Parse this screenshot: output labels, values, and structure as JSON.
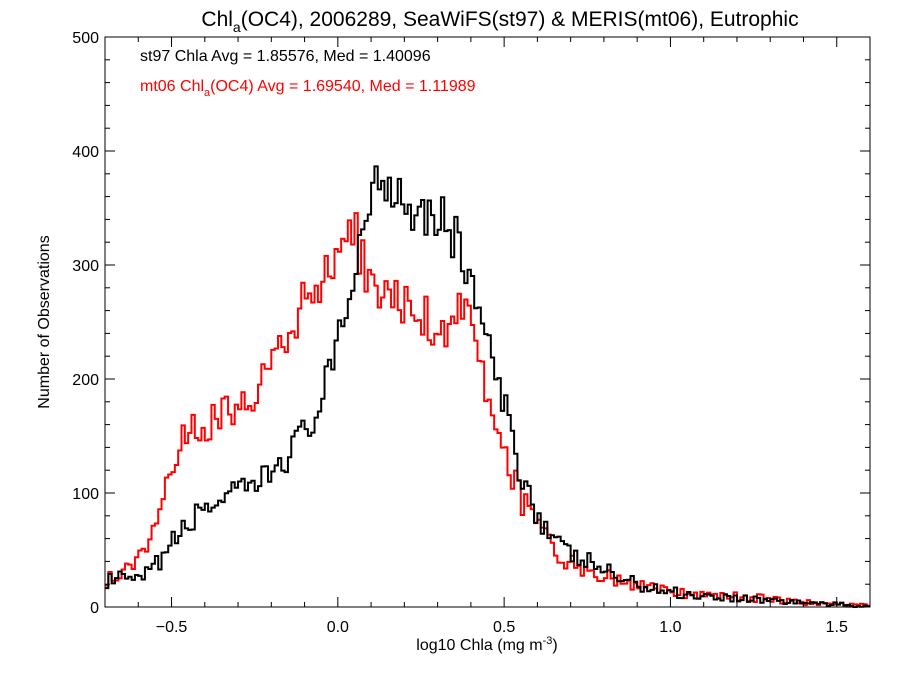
{
  "chart_data": {
    "type": "line",
    "title": {
      "main": "Chl",
      "sub": "a",
      "rest": "(OC4), 2006289, SeaWiFS(st97) & MERIS(mt06), Eutrophic"
    },
    "xlabel": {
      "main": "log10 Chla (mg m",
      "sup": "-3",
      "close": ")"
    },
    "ylabel": "Number of Observations",
    "xlim": [
      -0.7,
      1.6
    ],
    "ylim": [
      0,
      500
    ],
    "x_ticks": [
      {
        "value": -0.5,
        "label": "−0.5"
      },
      {
        "value": 0.0,
        "label": "0.0"
      },
      {
        "value": 0.5,
        "label": "0.5"
      },
      {
        "value": 1.0,
        "label": "1.0"
      },
      {
        "value": 1.5,
        "label": "1.5"
      }
    ],
    "y_ticks": [
      {
        "value": 0,
        "label": "0"
      },
      {
        "value": 100,
        "label": "100"
      },
      {
        "value": 200,
        "label": "200"
      },
      {
        "value": 300,
        "label": "300"
      },
      {
        "value": 400,
        "label": "400"
      },
      {
        "value": 500,
        "label": "500"
      }
    ],
    "grid": false,
    "legend": [
      {
        "parts": [
          "st97 Chla Avg = 1.85576, Med = 1.40096"
        ],
        "color": "#000000"
      },
      {
        "parts": [
          "mt06 Chl",
          "a",
          "(OC4) Avg = 1.69540, Med = 1.11989"
        ],
        "color": "#ff0000"
      }
    ],
    "bin_width": 0.01,
    "series": [
      {
        "id": "st97",
        "color": "#000000",
        "anchors": [
          [
            -0.7,
            22
          ],
          [
            -0.65,
            25
          ],
          [
            -0.6,
            22
          ],
          [
            -0.55,
            35
          ],
          [
            -0.5,
            55
          ],
          [
            -0.45,
            72
          ],
          [
            -0.4,
            88
          ],
          [
            -0.35,
            95
          ],
          [
            -0.3,
            98
          ],
          [
            -0.25,
            105
          ],
          [
            -0.2,
            118
          ],
          [
            -0.15,
            135
          ],
          [
            -0.1,
            152
          ],
          [
            -0.05,
            180
          ],
          [
            0.0,
            225
          ],
          [
            0.03,
            265
          ],
          [
            0.05,
            300
          ],
          [
            0.08,
            340
          ],
          [
            0.1,
            365
          ],
          [
            0.13,
            378
          ],
          [
            0.16,
            375
          ],
          [
            0.2,
            360
          ],
          [
            0.25,
            350
          ],
          [
            0.3,
            345
          ],
          [
            0.33,
            335
          ],
          [
            0.36,
            318
          ],
          [
            0.4,
            290
          ],
          [
            0.43,
            255
          ],
          [
            0.46,
            215
          ],
          [
            0.5,
            175
          ],
          [
            0.55,
            120
          ],
          [
            0.6,
            82
          ],
          [
            0.65,
            58
          ],
          [
            0.7,
            45
          ],
          [
            0.75,
            40
          ],
          [
            0.8,
            33
          ],
          [
            0.85,
            25
          ],
          [
            0.9,
            20
          ],
          [
            0.95,
            16
          ],
          [
            1.0,
            14
          ],
          [
            1.05,
            11
          ],
          [
            1.1,
            10
          ],
          [
            1.2,
            8
          ],
          [
            1.3,
            6
          ],
          [
            1.4,
            4
          ],
          [
            1.5,
            2
          ],
          [
            1.6,
            1
          ]
        ]
      },
      {
        "id": "mt06",
        "color": "#ff0000",
        "anchors": [
          [
            -0.7,
            25
          ],
          [
            -0.65,
            28
          ],
          [
            -0.6,
            42
          ],
          [
            -0.55,
            75
          ],
          [
            -0.5,
            125
          ],
          [
            -0.45,
            152
          ],
          [
            -0.4,
            158
          ],
          [
            -0.35,
            170
          ],
          [
            -0.3,
            180
          ],
          [
            -0.25,
            188
          ],
          [
            -0.2,
            212
          ],
          [
            -0.15,
            232
          ],
          [
            -0.1,
            268
          ],
          [
            -0.05,
            285
          ],
          [
            0.0,
            312
          ],
          [
            0.03,
            325
          ],
          [
            0.05,
            330
          ],
          [
            0.07,
            305
          ],
          [
            0.1,
            280
          ],
          [
            0.15,
            270
          ],
          [
            0.2,
            270
          ],
          [
            0.25,
            258
          ],
          [
            0.3,
            243
          ],
          [
            0.35,
            255
          ],
          [
            0.38,
            268
          ],
          [
            0.4,
            265
          ],
          [
            0.42,
            225
          ],
          [
            0.45,
            175
          ],
          [
            0.5,
            140
          ],
          [
            0.55,
            95
          ],
          [
            0.6,
            70
          ],
          [
            0.65,
            48
          ],
          [
            0.7,
            38
          ],
          [
            0.75,
            32
          ],
          [
            0.8,
            27
          ],
          [
            0.85,
            23
          ],
          [
            0.9,
            18
          ],
          [
            0.95,
            16
          ],
          [
            1.0,
            14
          ],
          [
            1.05,
            12
          ],
          [
            1.1,
            11
          ],
          [
            1.2,
            9
          ],
          [
            1.3,
            7
          ],
          [
            1.4,
            4
          ],
          [
            1.5,
            2
          ],
          [
            1.6,
            1
          ]
        ]
      }
    ]
  }
}
